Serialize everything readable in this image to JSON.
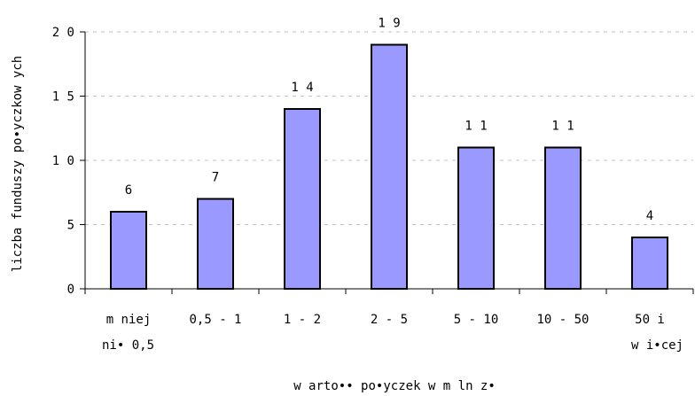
{
  "chart_data": {
    "type": "bar",
    "categories": [
      [
        "m niej",
        "ni• 0,5"
      ],
      [
        "0,5 - 1"
      ],
      [
        "1 - 2"
      ],
      [
        "2 - 5"
      ],
      [
        "5 - 10"
      ],
      [
        "10 - 50"
      ],
      [
        "50 i",
        "w i•cej"
      ]
    ],
    "values": [
      6,
      7,
      14,
      19,
      11,
      11,
      4
    ],
    "data_labels": [
      "6",
      "7",
      "1 4",
      "1 9",
      "1 1",
      "1 1",
      "4"
    ],
    "y_ticks": [
      0,
      5,
      10,
      15,
      20
    ],
    "y_tick_labels": [
      "0",
      "5",
      "1 0",
      "1 5",
      "2 0"
    ],
    "ylim": [
      0,
      20
    ],
    "xlabel": "w arto•• po•yczek w  m ln z•",
    "ylabel": "liczba funduszy po•yczkow ych",
    "grid": true,
    "legend": "none",
    "colors": {
      "bar_fill": "#9999ff",
      "bar_stroke": "#000000",
      "grid": "#c0c0c0"
    }
  }
}
